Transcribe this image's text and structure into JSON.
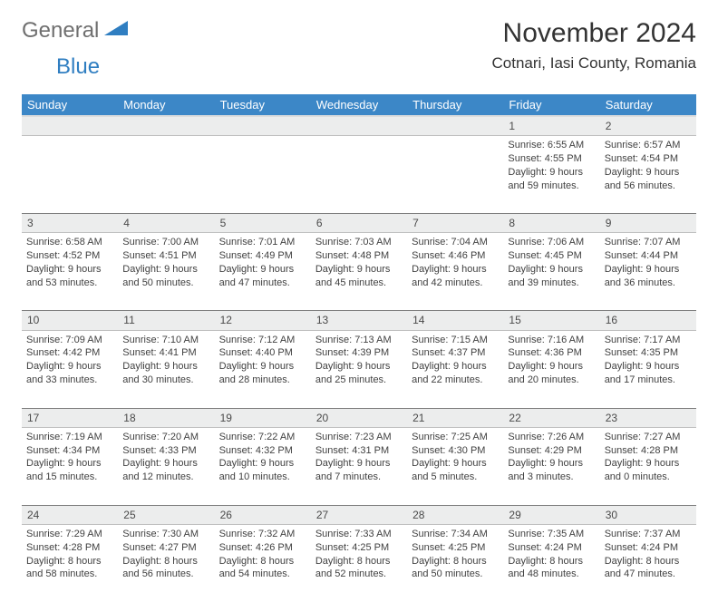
{
  "logo": {
    "part1": "General",
    "part2": "Blue"
  },
  "title": "November 2024",
  "location": "Cotnari, Iasi County, Romania",
  "colors": {
    "header_bg": "#3c87c7",
    "header_text": "#ffffff",
    "daynum_bg": "#eceded",
    "border": "#7d7d7d",
    "logo_gray": "#6f6f6f",
    "logo_blue": "#2f7ec1",
    "body_text": "#414141"
  },
  "weekdays": [
    "Sunday",
    "Monday",
    "Tuesday",
    "Wednesday",
    "Thursday",
    "Friday",
    "Saturday"
  ],
  "label": {
    "sunrise": "Sunrise:",
    "sunset": "Sunset:",
    "daylight": "Daylight:"
  },
  "weeks": [
    {
      "nums": [
        "",
        "",
        "",
        "",
        "",
        "1",
        "2"
      ],
      "cells": [
        null,
        null,
        null,
        null,
        null,
        {
          "sr": "6:55 AM",
          "ss": "4:55 PM",
          "dl": "9 hours and 59 minutes."
        },
        {
          "sr": "6:57 AM",
          "ss": "4:54 PM",
          "dl": "9 hours and 56 minutes."
        }
      ]
    },
    {
      "nums": [
        "3",
        "4",
        "5",
        "6",
        "7",
        "8",
        "9"
      ],
      "cells": [
        {
          "sr": "6:58 AM",
          "ss": "4:52 PM",
          "dl": "9 hours and 53 minutes."
        },
        {
          "sr": "7:00 AM",
          "ss": "4:51 PM",
          "dl": "9 hours and 50 minutes."
        },
        {
          "sr": "7:01 AM",
          "ss": "4:49 PM",
          "dl": "9 hours and 47 minutes."
        },
        {
          "sr": "7:03 AM",
          "ss": "4:48 PM",
          "dl": "9 hours and 45 minutes."
        },
        {
          "sr": "7:04 AM",
          "ss": "4:46 PM",
          "dl": "9 hours and 42 minutes."
        },
        {
          "sr": "7:06 AM",
          "ss": "4:45 PM",
          "dl": "9 hours and 39 minutes."
        },
        {
          "sr": "7:07 AM",
          "ss": "4:44 PM",
          "dl": "9 hours and 36 minutes."
        }
      ]
    },
    {
      "nums": [
        "10",
        "11",
        "12",
        "13",
        "14",
        "15",
        "16"
      ],
      "cells": [
        {
          "sr": "7:09 AM",
          "ss": "4:42 PM",
          "dl": "9 hours and 33 minutes."
        },
        {
          "sr": "7:10 AM",
          "ss": "4:41 PM",
          "dl": "9 hours and 30 minutes."
        },
        {
          "sr": "7:12 AM",
          "ss": "4:40 PM",
          "dl": "9 hours and 28 minutes."
        },
        {
          "sr": "7:13 AM",
          "ss": "4:39 PM",
          "dl": "9 hours and 25 minutes."
        },
        {
          "sr": "7:15 AM",
          "ss": "4:37 PM",
          "dl": "9 hours and 22 minutes."
        },
        {
          "sr": "7:16 AM",
          "ss": "4:36 PM",
          "dl": "9 hours and 20 minutes."
        },
        {
          "sr": "7:17 AM",
          "ss": "4:35 PM",
          "dl": "9 hours and 17 minutes."
        }
      ]
    },
    {
      "nums": [
        "17",
        "18",
        "19",
        "20",
        "21",
        "22",
        "23"
      ],
      "cells": [
        {
          "sr": "7:19 AM",
          "ss": "4:34 PM",
          "dl": "9 hours and 15 minutes."
        },
        {
          "sr": "7:20 AM",
          "ss": "4:33 PM",
          "dl": "9 hours and 12 minutes."
        },
        {
          "sr": "7:22 AM",
          "ss": "4:32 PM",
          "dl": "9 hours and 10 minutes."
        },
        {
          "sr": "7:23 AM",
          "ss": "4:31 PM",
          "dl": "9 hours and 7 minutes."
        },
        {
          "sr": "7:25 AM",
          "ss": "4:30 PM",
          "dl": "9 hours and 5 minutes."
        },
        {
          "sr": "7:26 AM",
          "ss": "4:29 PM",
          "dl": "9 hours and 3 minutes."
        },
        {
          "sr": "7:27 AM",
          "ss": "4:28 PM",
          "dl": "9 hours and 0 minutes."
        }
      ]
    },
    {
      "nums": [
        "24",
        "25",
        "26",
        "27",
        "28",
        "29",
        "30"
      ],
      "cells": [
        {
          "sr": "7:29 AM",
          "ss": "4:28 PM",
          "dl": "8 hours and 58 minutes."
        },
        {
          "sr": "7:30 AM",
          "ss": "4:27 PM",
          "dl": "8 hours and 56 minutes."
        },
        {
          "sr": "7:32 AM",
          "ss": "4:26 PM",
          "dl": "8 hours and 54 minutes."
        },
        {
          "sr": "7:33 AM",
          "ss": "4:25 PM",
          "dl": "8 hours and 52 minutes."
        },
        {
          "sr": "7:34 AM",
          "ss": "4:25 PM",
          "dl": "8 hours and 50 minutes."
        },
        {
          "sr": "7:35 AM",
          "ss": "4:24 PM",
          "dl": "8 hours and 48 minutes."
        },
        {
          "sr": "7:37 AM",
          "ss": "4:24 PM",
          "dl": "8 hours and 47 minutes."
        }
      ]
    }
  ]
}
